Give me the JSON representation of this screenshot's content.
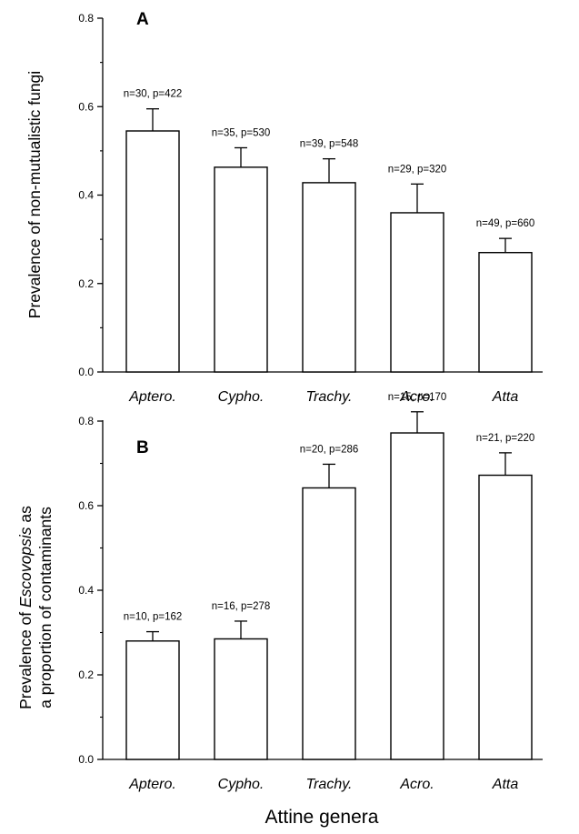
{
  "chart_data": [
    {
      "panel_label": "A",
      "type": "bar",
      "categories": [
        "Aptero.",
        "Cypho.",
        "Trachy.",
        "Acro.",
        "Atta"
      ],
      "values": [
        0.545,
        0.463,
        0.428,
        0.36,
        0.27
      ],
      "error_upper": [
        0.595,
        0.507,
        0.482,
        0.425,
        0.302
      ],
      "data_labels": [
        "n=30, p=422",
        "n=35, p=530",
        "n=39, p=548",
        "n=29, p=320",
        "n=49, p=660"
      ],
      "ylabel": "Prevalence of non-mutualistic fungi",
      "ylim": [
        0,
        0.8
      ],
      "yticks": [
        "0.0",
        "0.2",
        "0.4",
        "0.6",
        "0.8"
      ],
      "grid": false
    },
    {
      "panel_label": "B",
      "type": "bar",
      "categories": [
        "Aptero.",
        "Cypho.",
        "Trachy.",
        "Acro.",
        "Atta"
      ],
      "values": [
        0.28,
        0.285,
        0.642,
        0.772,
        0.672
      ],
      "error_upper": [
        0.302,
        0.327,
        0.698,
        0.822,
        0.725
      ],
      "data_labels": [
        "n=10, p=162",
        "n=16, p=278",
        "n=20, p=286",
        "n=15, p=170",
        "n=21, p=220"
      ],
      "ylabel_line1_prefix": "Prevalence of ",
      "ylabel_line1_italic": "Escovopsis",
      "ylabel_line1_suffix": " as",
      "ylabel_line2": "a proportion of contaminants",
      "xlabel": "Attine genera",
      "ylim": [
        0,
        0.8
      ],
      "yticks": [
        "0.0",
        "0.2",
        "0.4",
        "0.6",
        "0.8"
      ],
      "grid": false
    }
  ]
}
